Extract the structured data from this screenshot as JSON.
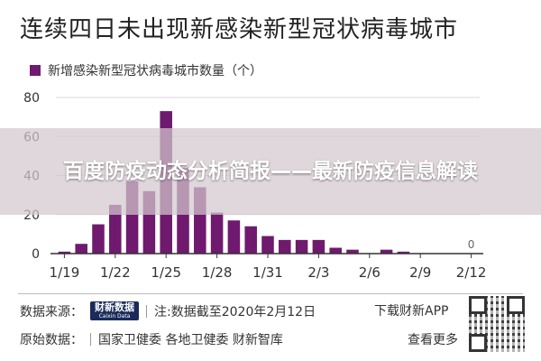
{
  "header": {
    "title": "连续四日未出现新感染新型冠状病毒城市"
  },
  "banner": {
    "text": "百度防疫动态分析简报——最新防疫信息解读"
  },
  "colors": {
    "bar": "#6f1a6e",
    "bar_light": "#8a2d88",
    "grid": "#d9d9d9",
    "axis": "#333333"
  },
  "chart_data": {
    "type": "bar",
    "title": "",
    "xlabel": "",
    "ylabel": "",
    "ylim": [
      0,
      80
    ],
    "y_ticks": [
      0,
      20,
      40,
      60,
      80
    ],
    "x_tick_labels": [
      "1/19",
      "1/22",
      "1/25",
      "1/28",
      "1/31",
      "2/3",
      "2/6",
      "2/9",
      "2/12"
    ],
    "categories": [
      "1/19",
      "1/20",
      "1/21",
      "1/22",
      "1/23",
      "1/24",
      "1/25",
      "1/26",
      "1/27",
      "1/28",
      "1/29",
      "1/30",
      "1/31",
      "2/1",
      "2/2",
      "2/3",
      "2/4",
      "2/5",
      "2/6",
      "2/7",
      "2/8",
      "2/9",
      "2/10",
      "2/11",
      "2/12"
    ],
    "values": [
      1,
      5,
      15,
      25,
      37,
      32,
      73,
      44,
      34,
      21,
      17,
      14,
      9,
      7,
      7,
      7,
      3,
      2,
      0,
      2,
      1,
      0,
      0,
      0,
      0
    ],
    "series": [
      {
        "name": "新增感染新型冠状病毒城市数量（个）"
      }
    ],
    "annotations": [
      {
        "category": "2/12",
        "text": "0"
      }
    ],
    "grid": true,
    "legend_position": "top-left"
  },
  "footer": {
    "source_label": "数据来源：",
    "brand_name": "财新数据",
    "brand_sub": "Caixin Data",
    "note": "注:数据截至2020年2月12日",
    "raw_label": "原始数据：",
    "raw_sources": "国家卫健委  各地卫健委  财新智库",
    "app_text": "下载财新APP",
    "more_text": "查看更多"
  }
}
